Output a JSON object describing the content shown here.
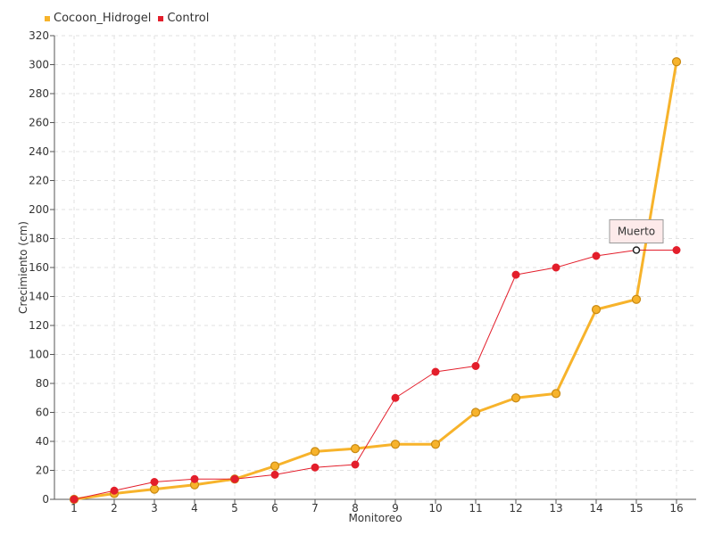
{
  "chart_data": {
    "type": "line",
    "xlabel": "Monitoreo",
    "ylabel": "Crecimiento (cm)",
    "ylim": [
      0,
      320
    ],
    "ytick_step": 20,
    "categories": [
      "1",
      "2",
      "3",
      "4",
      "5",
      "6",
      "7",
      "8",
      "9",
      "10",
      "11",
      "12",
      "13",
      "14",
      "15",
      "16"
    ],
    "series": [
      {
        "name": "Cocoon_Hidrogel",
        "color": "#f7b32b",
        "values": [
          0,
          4,
          7,
          10,
          14,
          23,
          33,
          35,
          38,
          38,
          60,
          70,
          73,
          131,
          138,
          302
        ]
      },
      {
        "name": "Control",
        "color": "#e31e2b",
        "values": [
          0,
          6,
          12,
          14,
          14,
          17,
          22,
          24,
          70,
          88,
          92,
          155,
          160,
          168,
          172,
          172
        ]
      }
    ],
    "annotation": {
      "series": "Control",
      "category": "15",
      "text": "Muerto"
    },
    "grid": true,
    "legend_position": "top-left"
  }
}
